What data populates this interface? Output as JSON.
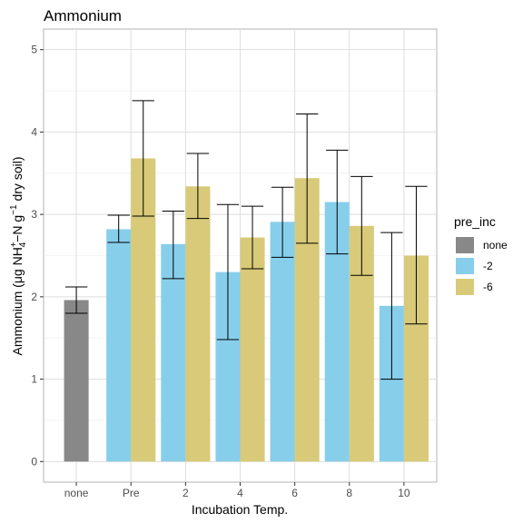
{
  "chart_data": {
    "type": "bar",
    "title": "Ammonium",
    "xlabel": "Incubation Temp.",
    "ylabel": {
      "main": "Ammonium (μg NH",
      "sup1": "+",
      "sub1": "4",
      "mid": "−N g",
      "sup2": "−1",
      "tail": " dry soil)"
    },
    "categories": [
      "none",
      "Pre",
      "2",
      "4",
      "6",
      "8",
      "10"
    ],
    "ylim": [
      -0.25,
      5.25
    ],
    "yticks": [
      "0",
      "1",
      "2",
      "3",
      "4",
      "5"
    ],
    "grid": true,
    "legend": {
      "title": "pre_inc",
      "position": "right",
      "entries": [
        {
          "label": "none",
          "color": "#888888"
        },
        {
          "label": "-2",
          "color": "#87CEEB"
        },
        {
          "label": "-6",
          "color": "#D8CA78"
        }
      ]
    },
    "series": [
      {
        "name": "none",
        "color": "#888888",
        "values": [
          1.96,
          null,
          null,
          null,
          null,
          null,
          null
        ],
        "err_low": [
          1.8,
          null,
          null,
          null,
          null,
          null,
          null
        ],
        "err_high": [
          2.12,
          null,
          null,
          null,
          null,
          null,
          null
        ]
      },
      {
        "name": "-2",
        "color": "#87CEEB",
        "values": [
          null,
          2.82,
          2.64,
          2.3,
          2.91,
          3.15,
          1.89
        ],
        "err_low": [
          null,
          2.66,
          2.22,
          1.48,
          2.48,
          2.52,
          1.0
        ],
        "err_high": [
          null,
          2.99,
          3.04,
          3.12,
          3.33,
          3.78,
          2.78
        ]
      },
      {
        "name": "-6",
        "color": "#D8CA78",
        "values": [
          null,
          3.68,
          3.34,
          2.72,
          3.44,
          2.86,
          2.5
        ],
        "err_low": [
          null,
          2.98,
          2.95,
          2.34,
          2.65,
          2.26,
          1.67
        ],
        "err_high": [
          null,
          4.38,
          3.74,
          3.1,
          4.22,
          3.46,
          3.34
        ]
      }
    ]
  }
}
